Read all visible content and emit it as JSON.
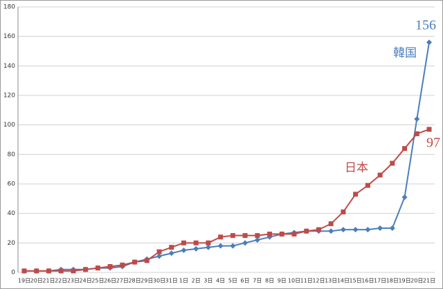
{
  "chart_data": {
    "type": "line",
    "categories": [
      "19日",
      "20日",
      "21日",
      "22日",
      "23日",
      "24日",
      "25日",
      "26日",
      "27日",
      "28日",
      "29日",
      "30日",
      "31日",
      "1日",
      "2日",
      "3日",
      "4日",
      "5日",
      "6日",
      "7日",
      "8日",
      "9日",
      "10日",
      "11日",
      "12日",
      "13日",
      "14日",
      "15日",
      "16日",
      "17日",
      "18日",
      "19日",
      "20日",
      "21日"
    ],
    "series": [
      {
        "name": "韓国",
        "color": "#4a7ebb",
        "marker": "diamond",
        "values": [
          1,
          1,
          1,
          2,
          2,
          2,
          3,
          3,
          4,
          7,
          9,
          11,
          13,
          15,
          16,
          17,
          18,
          18,
          20,
          22,
          24,
          26,
          27,
          28,
          28,
          28,
          29,
          29,
          29,
          30,
          30,
          51,
          104,
          156
        ]
      },
      {
        "name": "日本",
        "color": "#be4b48",
        "marker": "square",
        "values": [
          1,
          1,
          1,
          1,
          1,
          2,
          3,
          4,
          5,
          7,
          8,
          14,
          17,
          20,
          20,
          20,
          24,
          25,
          25,
          25,
          26,
          26,
          26,
          28,
          29,
          33,
          41,
          53,
          59,
          66,
          74,
          84,
          94,
          97
        ]
      }
    ],
    "ylim": [
      0,
      180
    ],
    "yticks": [
      0,
      20,
      40,
      60,
      80,
      100,
      120,
      140,
      160,
      180
    ],
    "grid": true
  }
}
